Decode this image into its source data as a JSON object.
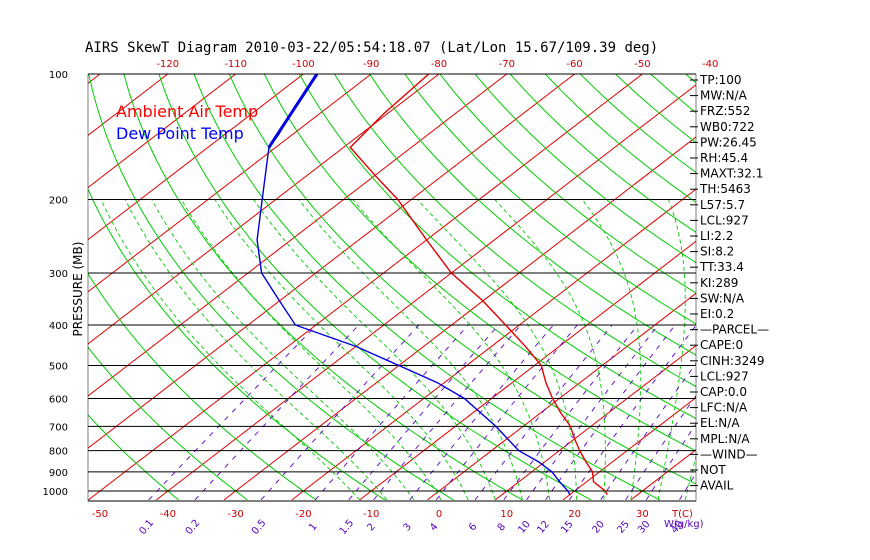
{
  "chart_data": {
    "type": "line",
    "title": "AIRS SkewT Diagram 2010-03-22/05:54:18.07 (Lat/Lon 15.67/109.39 deg)",
    "ylabel": "PRESSURE (MB)",
    "x_bottom_label": "T(C)",
    "mixing_ratio_label": "W(g/kg)",
    "pressure_ticks": [
      100,
      200,
      300,
      400,
      500,
      600,
      700,
      800,
      900,
      1000
    ],
    "pressure_range": [
      100,
      1050
    ],
    "temp_bottom_ticks": [
      -50,
      -40,
      -30,
      -20,
      -10,
      0,
      10,
      20,
      30
    ],
    "temp_top_ticks": [
      -120,
      -110,
      -100,
      -90,
      -80,
      -70,
      -60,
      -50,
      -40
    ],
    "mixing_ratio_ticks": [
      "0.1",
      "0.2",
      "0.5",
      "1",
      "1.5",
      "2",
      "3",
      "4",
      "6",
      "8",
      "10",
      "12",
      "15",
      "20",
      "25",
      "30",
      "40"
    ],
    "legend": [
      {
        "label": "Ambient Air Temp",
        "color": "#ff0000"
      },
      {
        "label": "Dew Point Temp",
        "color": "#0000ff"
      }
    ],
    "series": [
      {
        "name": "Ambient Air Temp",
        "color": "#e00000",
        "points": [
          {
            "p": 100,
            "t": -81.5
          },
          {
            "p": 125,
            "t": -80.5
          },
          {
            "p": 150,
            "t": -79
          },
          {
            "p": 175,
            "t": -70
          },
          {
            "p": 200,
            "t": -62
          },
          {
            "p": 250,
            "t": -50
          },
          {
            "p": 300,
            "t": -40
          },
          {
            "p": 350,
            "t": -30
          },
          {
            "p": 400,
            "t": -22
          },
          {
            "p": 450,
            "t": -15
          },
          {
            "p": 500,
            "t": -9
          },
          {
            "p": 550,
            "t": -5
          },
          {
            "p": 600,
            "t": -1
          },
          {
            "p": 650,
            "t": 3
          },
          {
            "p": 700,
            "t": 7
          },
          {
            "p": 750,
            "t": 10
          },
          {
            "p": 800,
            "t": 13
          },
          {
            "p": 850,
            "t": 16
          },
          {
            "p": 900,
            "t": 19
          },
          {
            "p": 950,
            "t": 21
          },
          {
            "p": 1000,
            "t": 24.5
          },
          {
            "p": 1020,
            "t": 25.5
          }
        ]
      },
      {
        "name": "Dew Point Temp",
        "color": "#0000e0",
        "points": [
          {
            "p": 100,
            "t": -98
          },
          {
            "p": 120,
            "t": -95
          },
          {
            "p": 140,
            "t": -92
          },
          {
            "p": 150,
            "t": -91
          },
          {
            "p": 200,
            "t": -82
          },
          {
            "p": 250,
            "t": -75
          },
          {
            "p": 300,
            "t": -68
          },
          {
            "p": 350,
            "t": -60
          },
          {
            "p": 400,
            "t": -53
          },
          {
            "p": 450,
            "t": -40
          },
          {
            "p": 500,
            "t": -30
          },
          {
            "p": 550,
            "t": -21
          },
          {
            "p": 600,
            "t": -14
          },
          {
            "p": 700,
            "t": -4
          },
          {
            "p": 800,
            "t": 4
          },
          {
            "p": 850,
            "t": 9
          },
          {
            "p": 900,
            "t": 13
          },
          {
            "p": 950,
            "t": 16
          },
          {
            "p": 1000,
            "t": 19
          },
          {
            "p": 1020,
            "t": 20
          }
        ]
      }
    ],
    "indices": [
      "TP:100",
      "MW:N/A",
      "FRZ:552",
      "WB0:722",
      "PW:26.45",
      "RH:45.4",
      "MAXT:32.1",
      "TH:5463",
      "L57:5.7",
      "LCL:927",
      "LI:2.2",
      "SI:8.2",
      "TT:33.4",
      "KI:289",
      "SW:N/A",
      "EI:0.2",
      "—PARCEL—",
      "CAPE:0",
      "CINH:3249",
      "LCL:927",
      "CAP:0.0",
      "LFC:N/A",
      "EL:N/A",
      "MPL:N/A",
      "—WIND—",
      "NOT",
      "AVAIL"
    ]
  },
  "colors": {
    "isotherm": "#e00000",
    "dry_adiabat": "#00cc00",
    "moist_adiabat": "#00cc00",
    "mixing_ratio": "#5500cc",
    "isobar": "#000000",
    "temp_tick": "#cc0000",
    "top_tick": "#cc0000",
    "mixing_tick": "#5500bb"
  }
}
